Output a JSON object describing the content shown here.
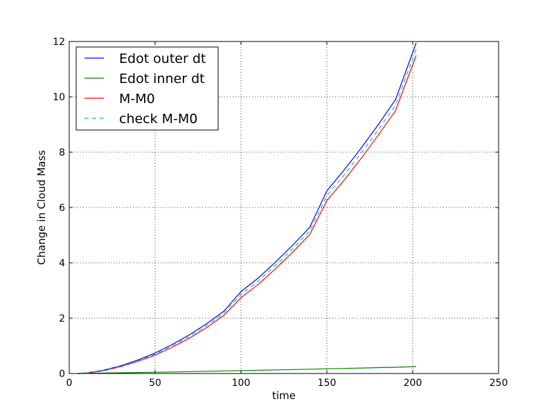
{
  "chart_data": {
    "type": "line",
    "title": "",
    "xlabel": "time",
    "ylabel": "Change in Cloud Mass",
    "xlim": [
      0,
      250
    ],
    "ylim": [
      0,
      12
    ],
    "xticks": [
      0,
      50,
      100,
      150,
      200,
      250
    ],
    "yticks": [
      0,
      2,
      4,
      6,
      8,
      10,
      12
    ],
    "xtick_labels": [
      "0",
      "50",
      "100",
      "150",
      "200",
      "250"
    ],
    "ytick_labels": [
      "0",
      "2",
      "4",
      "6",
      "8",
      "10",
      "12"
    ],
    "grid": true,
    "legend_position": "top-left",
    "x": [
      5,
      10,
      20,
      30,
      40,
      50,
      60,
      70,
      80,
      90,
      100,
      110,
      120,
      130,
      140,
      150,
      160,
      170,
      180,
      190,
      202
    ],
    "series": [
      {
        "name": "Edot outer dt",
        "color": "#0000ff",
        "style": "solid",
        "values": [
          0.0,
          0.02,
          0.12,
          0.28,
          0.49,
          0.74,
          1.05,
          1.4,
          1.8,
          2.25,
          2.96,
          3.45,
          4.02,
          4.63,
          5.28,
          6.6,
          7.35,
          8.15,
          9.0,
          9.9,
          11.95
        ]
      },
      {
        "name": "Edot inner dt",
        "color": "#008000",
        "style": "solid",
        "values": [
          0.0,
          0.005,
          0.015,
          0.025,
          0.035,
          0.045,
          0.055,
          0.068,
          0.08,
          0.092,
          0.105,
          0.118,
          0.13,
          0.143,
          0.156,
          0.17,
          0.183,
          0.197,
          0.212,
          0.226,
          0.25
        ]
      },
      {
        "name": "M-M0",
        "color": "#ff0000",
        "style": "solid",
        "values": [
          0.0,
          0.01,
          0.1,
          0.25,
          0.44,
          0.66,
          0.95,
          1.28,
          1.66,
          2.1,
          2.74,
          3.22,
          3.78,
          4.38,
          5.02,
          6.25,
          6.98,
          7.78,
          8.62,
          9.5,
          11.5
        ]
      },
      {
        "name": "check M-M0",
        "color": "#00bfbf",
        "style": "dashed",
        "values": [
          0.0,
          0.015,
          0.11,
          0.26,
          0.46,
          0.7,
          1.0,
          1.34,
          1.73,
          2.18,
          2.85,
          3.34,
          3.9,
          4.5,
          5.15,
          6.42,
          7.17,
          7.97,
          8.81,
          9.7,
          11.73
        ]
      }
    ]
  }
}
